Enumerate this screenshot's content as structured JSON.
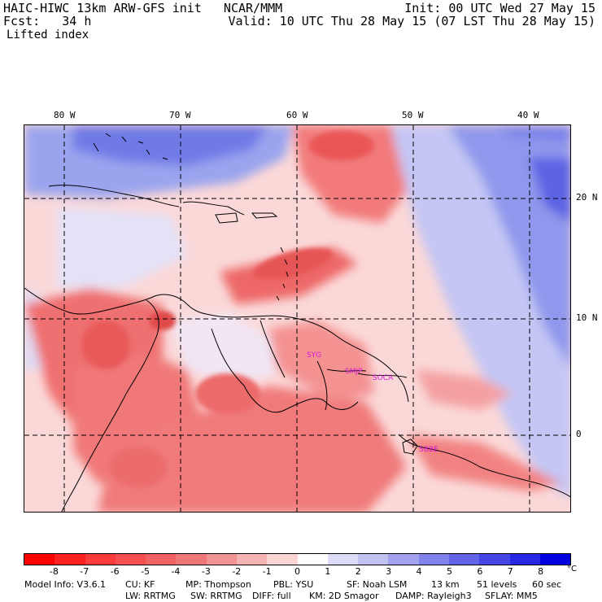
{
  "header": {
    "title": "HAIC-HIWC 13km ARW-GFS init   NCAR/MMM",
    "forecast": "Fcst:   34 h",
    "field": "Lifted index",
    "init": "Init: 00 UTC Wed 27 May 15",
    "valid": "Valid: 10 UTC Thu 28 May 15 (07 LST Thu 28 May 15)"
  },
  "map": {
    "lon_labels": [
      "80 W",
      "70 W",
      "60 W",
      "50 W",
      "40 W"
    ],
    "lat_labels": [
      "20 N",
      "10 N",
      "0"
    ],
    "stations": [
      "SYG",
      "SMJP",
      "SOCA",
      "SBBE"
    ]
  },
  "colorbar": {
    "labels": [
      "-8",
      "-7",
      "-6",
      "-5",
      "-4",
      "-3",
      "-2",
      "-1",
      "0",
      "1",
      "2",
      "3",
      "4",
      "5",
      "6",
      "7",
      "8"
    ],
    "unit": "°C",
    "colors": [
      "#ff0000",
      "#ff2020",
      "#ff3c3c",
      "#f85050",
      "#f26464",
      "#ee7878",
      "#f29494",
      "#f7b4b4",
      "#fbd4d4",
      "#ffffff",
      "#dcdcf8",
      "#c2c2f2",
      "#a2a2ee",
      "#8282ec",
      "#6464ea",
      "#4646e6",
      "#2828e4",
      "#0000e0"
    ]
  },
  "footer": {
    "line1": [
      "Model Info: V3.6.1",
      "CU: KF",
      "MP: Thompson",
      "PBL: YSU",
      "SF: Noah LSM",
      "13 km",
      "51 levels",
      "60 sec"
    ],
    "line2": [
      "LW: RRTMG",
      "SW: RRTMG",
      "DIFF: full",
      "KM: 2D Smagor",
      "DAMP: Rayleigh3",
      "SFLAY: MM5"
    ]
  }
}
